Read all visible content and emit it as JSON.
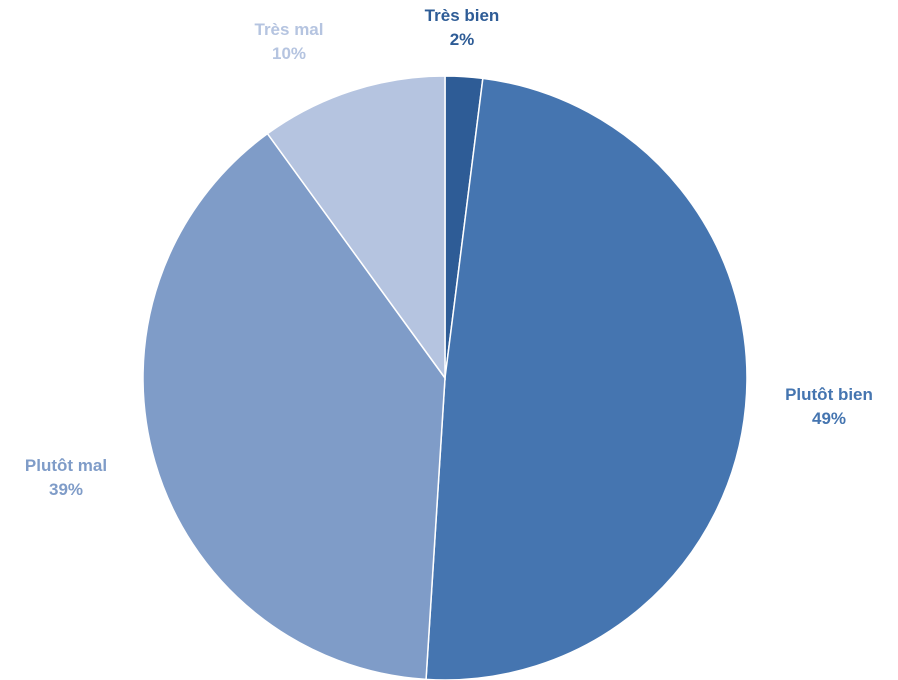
{
  "chart_data": {
    "type": "pie",
    "title": "",
    "legend": "none",
    "start_angle_deg": 0,
    "direction": "clockwise",
    "slices": [
      {
        "label": "Très bien",
        "percent_label": "2%",
        "value": 2,
        "color": "#2e5c96",
        "label_color": "#2e5c96"
      },
      {
        "label": "Plutôt bien",
        "percent_label": "49%",
        "value": 49,
        "color": "#4575b0",
        "label_color": "#4575b0"
      },
      {
        "label": "Plutôt mal",
        "percent_label": "39%",
        "value": 39,
        "color": "#7f9cc8",
        "label_color": "#7f9cc8"
      },
      {
        "label": "Très mal",
        "percent_label": "10%",
        "value": 10,
        "color": "#b5c4e0",
        "label_color": "#b5c4e0"
      }
    ]
  }
}
